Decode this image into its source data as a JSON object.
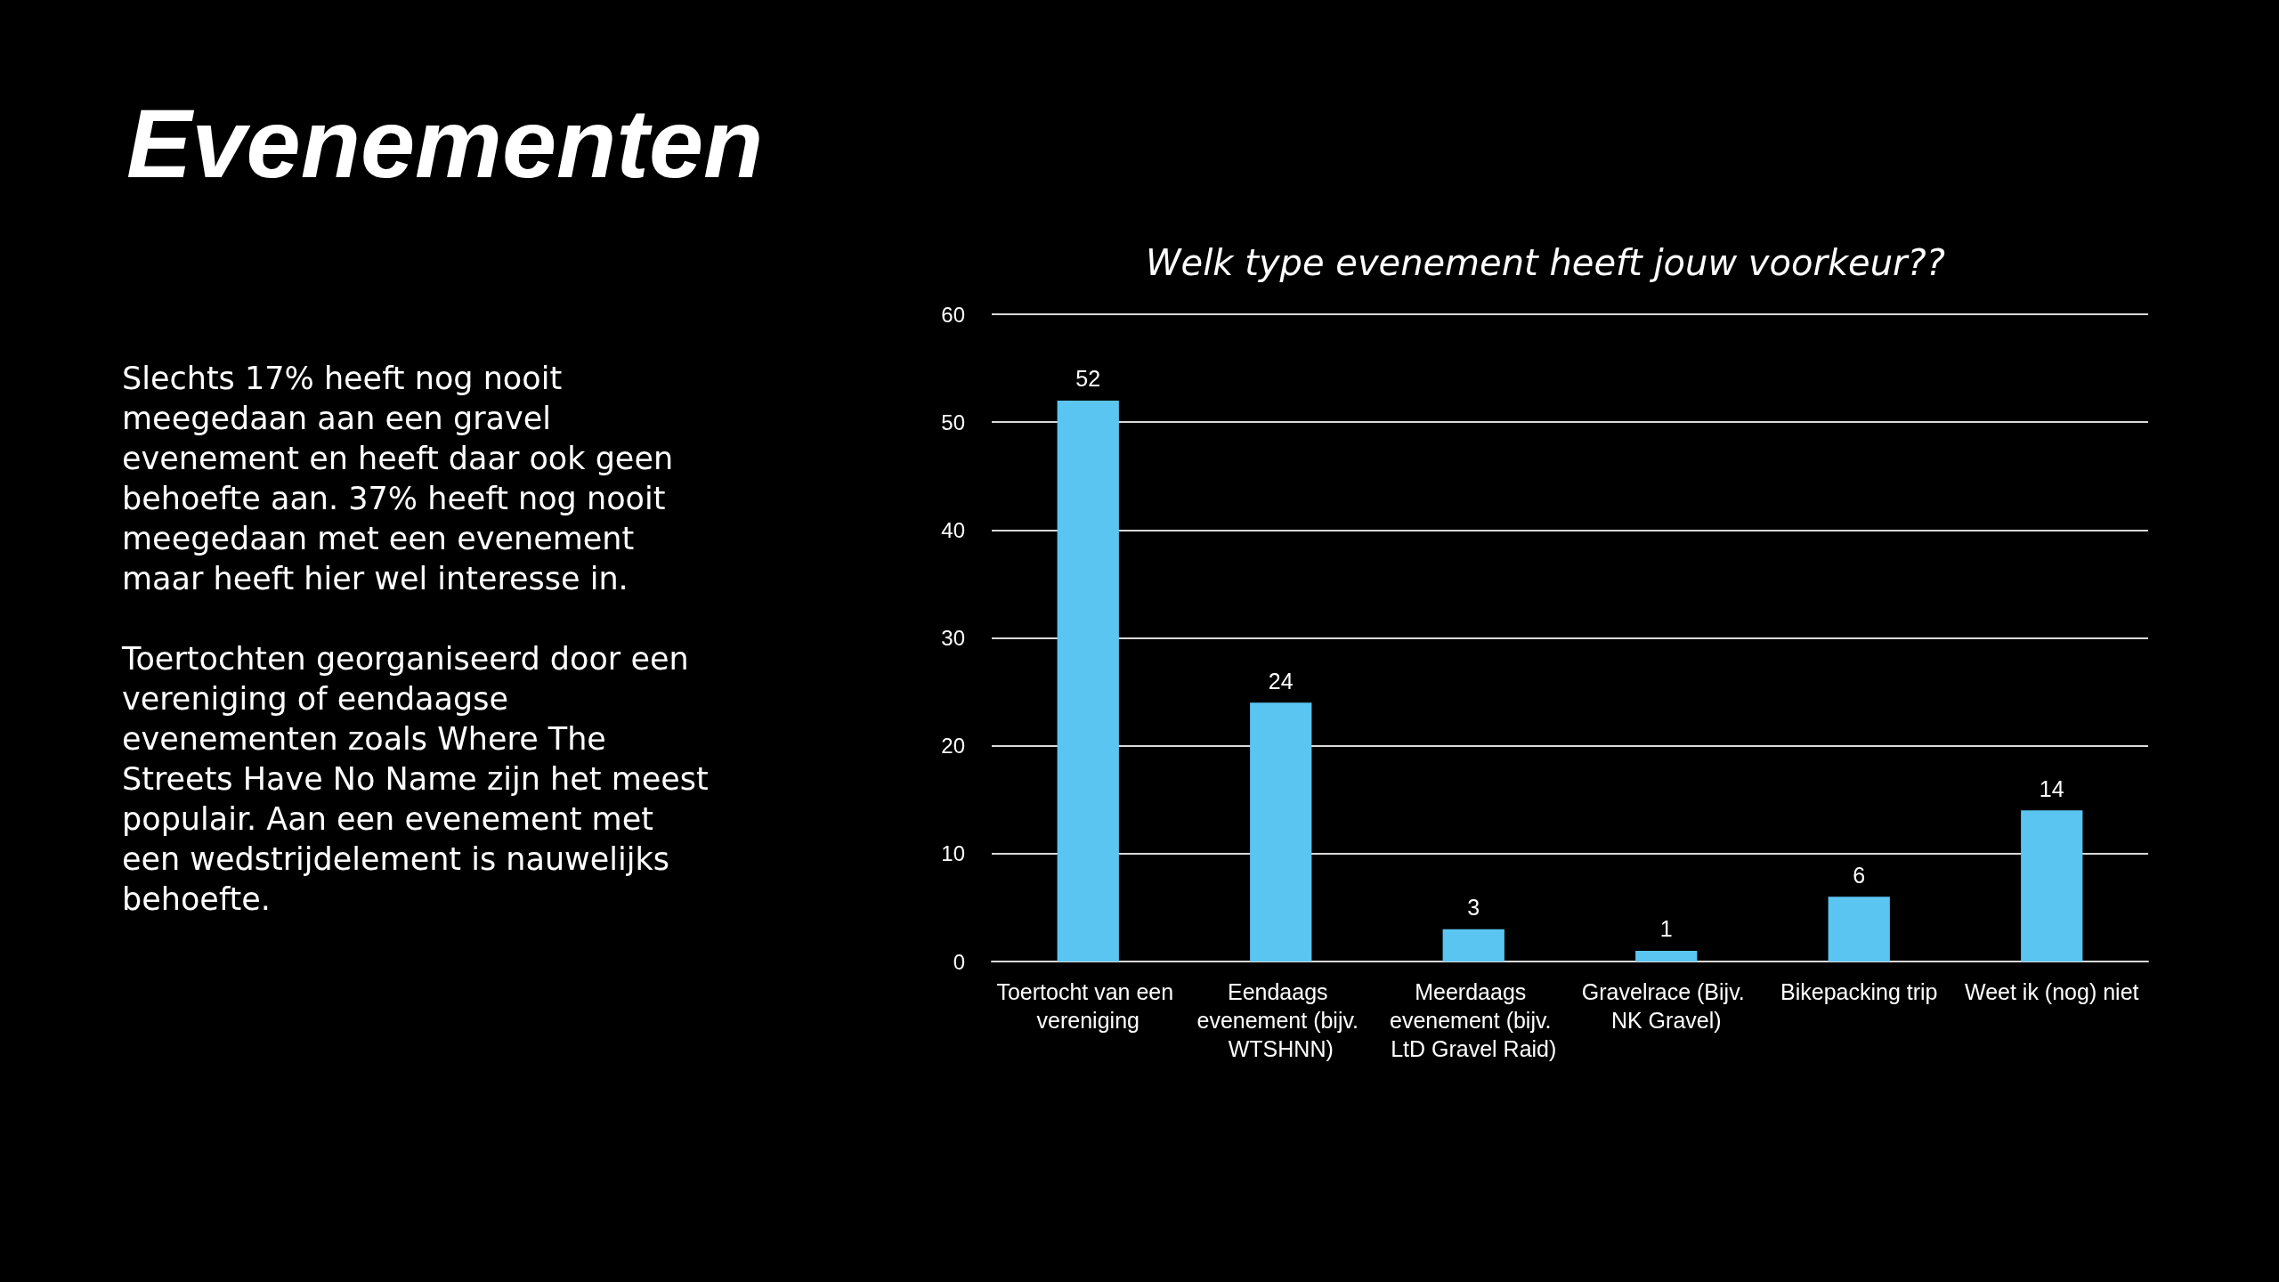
{
  "chart_data": {
    "type": "bar",
    "title": "Evenementen",
    "subtitle": "Welk type evenement heeft jouw voorkeur??",
    "categories": [
      "Toertocht van een vereniging",
      "Eendaags evenement (bijv. WTSHNN)",
      "Meerdaags evenement (bijv. LtD Gravel Raid)",
      "Gravelrace (Bijv. NK Gravel)",
      "Bikepacking trip",
      "Weet ik (nog) niet"
    ],
    "values": [
      52,
      24,
      3,
      1,
      6,
      14
    ],
    "color": "#5bc5f2",
    "ylim": [
      0,
      60
    ],
    "yticks": [
      0,
      10,
      20,
      30,
      40,
      50,
      60
    ],
    "grid": "y",
    "data_labels": true,
    "annotations": [
      "Slechts 17% heeft nog nooit meegedaan aan een gravel evenement en heeft daar ook geen behoefte aan. 37% heeft nog nooit meegedaan met een evenement maar heeft hier wel interesse in.",
      "Toertochten georganiseerd door een vereniging of eendaagse evenementen zoals Where The Streets Have No Name zijn het meest populair. Aan een evenement met een wedstrijdelement is nauwelijks behoefte."
    ]
  }
}
